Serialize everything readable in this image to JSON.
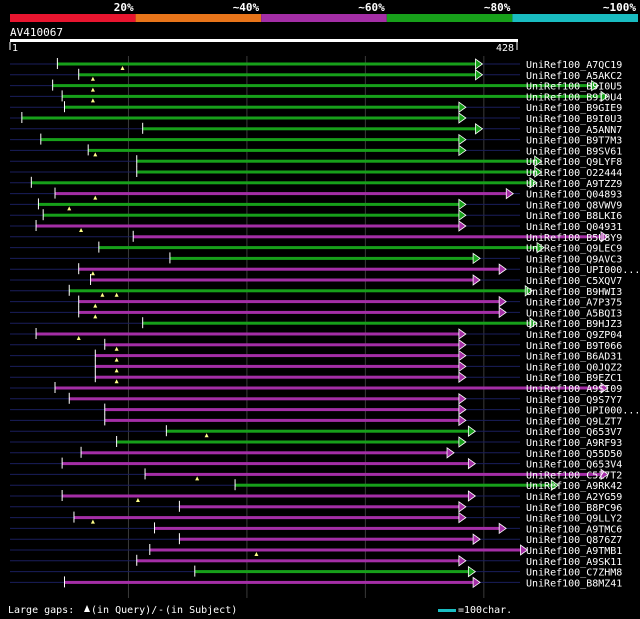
{
  "chart_data": {
    "type": "alignment-overview",
    "title": "AV410067",
    "query_length": 428,
    "axis": {
      "start_label": "1",
      "end_label": "428"
    },
    "identity_legend": [
      {
        "label": "20%",
        "color": "#e8152f"
      },
      {
        "label": "~40%",
        "color": "#e8751a"
      },
      {
        "label": "~60%",
        "color": "#a42ea6"
      },
      {
        "label": "~80%",
        "color": "#17a01a"
      },
      {
        "label": "~100%",
        "color": "#19bcc1"
      }
    ],
    "hits": [
      {
        "name": "UniRef100_A7QC19",
        "start": 40,
        "end": 398,
        "color": "#17a01a",
        "arrow": true,
        "marks": [
          95
        ],
        "extra": [
          [
            40,
            70
          ]
        ]
      },
      {
        "name": "UniRef100_A5AKC2",
        "start": 58,
        "end": 398,
        "color": "#17a01a",
        "arrow": true,
        "marks": [
          70
        ],
        "extra": [
          [
            58,
            70
          ]
        ]
      },
      {
        "name": "UniRef100_B9I0U5",
        "start": 36,
        "end": 496,
        "color": "#17a01a",
        "arrow": true,
        "marks": [
          70
        ],
        "extra": [
          [
            160,
            175
          ]
        ]
      },
      {
        "name": "UniRef100_B9I0U4",
        "start": 44,
        "end": 504,
        "color": "#17a01a",
        "arrow": true,
        "marks": [
          70
        ],
        "extra": [
          [
            165,
            180
          ]
        ]
      },
      {
        "name": "UniRef100_B9GIE9",
        "start": 46,
        "end": 384,
        "color": "#17a01a",
        "arrow": true,
        "marks": [],
        "extra": [
          [
            46,
            60
          ]
        ]
      },
      {
        "name": "UniRef100_B9I0U3",
        "start": 10,
        "end": 384,
        "color": "#17a01a",
        "arrow": true,
        "marks": [],
        "extra": []
      },
      {
        "name": "UniRef100_A5ANN7",
        "start": 112,
        "end": 398,
        "color": "#17a01a",
        "arrow": true,
        "marks": [],
        "extra": []
      },
      {
        "name": "UniRef100_B9T7M3",
        "start": 26,
        "end": 384,
        "color": "#17a01a",
        "arrow": true,
        "marks": [],
        "extra": [
          [
            26,
            56
          ]
        ]
      },
      {
        "name": "UniRef100_B9SV61",
        "start": 66,
        "end": 384,
        "color": "#17a01a",
        "arrow": true,
        "marks": [
          72
        ],
        "extra": [
          [
            66,
            76
          ]
        ]
      },
      {
        "name": "UniRef100_Q9LYF8",
        "start": 107,
        "end": 448,
        "color": "#17a01a",
        "arrow": true,
        "marks": [],
        "extra": []
      },
      {
        "name": "UniRef100_O22444",
        "start": 107,
        "end": 448,
        "color": "#17a01a",
        "arrow": true,
        "marks": [],
        "extra": []
      },
      {
        "name": "UniRef100_A9TZZ9",
        "start": 18,
        "end": 444,
        "color": "#17a01a",
        "arrow": true,
        "marks": [],
        "extra": [
          [
            100,
            150
          ]
        ]
      },
      {
        "name": "UniRef100_Q04893",
        "start": 38,
        "end": 424,
        "color": "#a42ea6",
        "arrow": true,
        "marks": [
          72
        ],
        "extra": [
          [
            38,
            52
          ]
        ]
      },
      {
        "name": "UniRef100_Q8VWV9",
        "start": 24,
        "end": 384,
        "color": "#17a01a",
        "arrow": true,
        "marks": [
          50
        ],
        "extra": [
          [
            24,
            40
          ]
        ]
      },
      {
        "name": "UniRef100_B8LKI6",
        "start": 28,
        "end": 384,
        "color": "#17a01a",
        "arrow": true,
        "marks": [],
        "extra": [
          [
            60,
            90
          ]
        ]
      },
      {
        "name": "UniRef100_Q04931",
        "start": 22,
        "end": 384,
        "color": "#a42ea6",
        "arrow": true,
        "marks": [
          60
        ],
        "extra": [
          [
            22,
            40
          ]
        ]
      },
      {
        "name": "UniRef100_B5U8Y9",
        "start": 104,
        "end": 504,
        "color": "#a42ea6",
        "arrow": true,
        "marks": [],
        "extra": [
          [
            200,
            215
          ]
        ]
      },
      {
        "name": "UniRef100_Q9LEC9",
        "start": 75,
        "end": 450,
        "color": "#17a01a",
        "arrow": true,
        "marks": [],
        "extra": [
          [
            180,
            200
          ]
        ]
      },
      {
        "name": "UniRef100_Q9AVC3",
        "start": 135,
        "end": 396,
        "color": "#17a01a",
        "arrow": true,
        "marks": [],
        "extra": []
      },
      {
        "name": "UniRef100_UPI000...",
        "start": 58,
        "end": 418,
        "color": "#a42ea6",
        "arrow": true,
        "marks": [
          70
        ],
        "extra": [
          [
            58,
            72
          ]
        ]
      },
      {
        "name": "UniRef100_C5XQV7",
        "start": 68,
        "end": 396,
        "color": "#a42ea6",
        "arrow": true,
        "marks": [],
        "extra": []
      },
      {
        "name": "UniRef100_B9HWI3",
        "start": 50,
        "end": 440,
        "color": "#17a01a",
        "arrow": true,
        "marks": [
          78,
          90
        ],
        "extra": [
          [
            50,
            70
          ],
          [
            170,
            180
          ]
        ]
      },
      {
        "name": "UniRef100_A7P375",
        "start": 58,
        "end": 418,
        "color": "#a42ea6",
        "arrow": true,
        "marks": [
          72
        ],
        "extra": [
          [
            90,
            110
          ]
        ]
      },
      {
        "name": "UniRef100_A5BQI3",
        "start": 58,
        "end": 418,
        "color": "#a42ea6",
        "arrow": true,
        "marks": [
          72
        ],
        "extra": [
          [
            90,
            110
          ]
        ]
      },
      {
        "name": "UniRef100_B9HJZ3",
        "start": 112,
        "end": 444,
        "color": "#17a01a",
        "arrow": true,
        "marks": [],
        "extra": [
          [
            210,
            225
          ]
        ]
      },
      {
        "name": "UniRef100_Q9ZP04",
        "start": 22,
        "end": 384,
        "color": "#a42ea6",
        "arrow": true,
        "marks": [
          58
        ],
        "extra": [
          [
            22,
            40
          ]
        ]
      },
      {
        "name": "UniRef100_B9T066",
        "start": 80,
        "end": 384,
        "color": "#a42ea6",
        "arrow": true,
        "marks": [
          90
        ],
        "extra": [
          [
            80,
            115
          ]
        ]
      },
      {
        "name": "UniRef100_B6AD31",
        "start": 72,
        "end": 384,
        "color": "#a42ea6",
        "arrow": true,
        "marks": [
          90
        ],
        "extra": []
      },
      {
        "name": "UniRef100_Q0JQZ2",
        "start": 72,
        "end": 384,
        "color": "#a42ea6",
        "arrow": true,
        "marks": [
          90
        ],
        "extra": []
      },
      {
        "name": "UniRef100_B9EZC1",
        "start": 72,
        "end": 384,
        "color": "#a42ea6",
        "arrow": true,
        "marks": [
          90
        ],
        "extra": []
      },
      {
        "name": "UniRef100_A9SI09",
        "start": 38,
        "end": 504,
        "color": "#a42ea6",
        "arrow": true,
        "marks": [],
        "extra": [
          [
            160,
            175
          ]
        ]
      },
      {
        "name": "UniRef100_Q9S7Y7",
        "start": 50,
        "end": 384,
        "color": "#a42ea6",
        "arrow": true,
        "marks": [],
        "extra": [
          [
            50,
            90
          ]
        ]
      },
      {
        "name": "UniRef100_UPI000...",
        "start": 80,
        "end": 384,
        "color": "#a42ea6",
        "arrow": true,
        "marks": [],
        "extra": []
      },
      {
        "name": "UniRef100_Q9LZT7",
        "start": 80,
        "end": 384,
        "color": "#a42ea6",
        "arrow": true,
        "marks": [],
        "extra": []
      },
      {
        "name": "UniRef100_Q653V7",
        "start": 132,
        "end": 392,
        "color": "#17a01a",
        "arrow": true,
        "marks": [
          166
        ],
        "extra": [
          [
            132,
            150
          ]
        ]
      },
      {
        "name": "UniRef100_A9RF93",
        "start": 90,
        "end": 384,
        "color": "#17a01a",
        "arrow": true,
        "marks": [],
        "extra": []
      },
      {
        "name": "UniRef100_Q55D50",
        "start": 60,
        "end": 374,
        "color": "#a42ea6",
        "arrow": true,
        "marks": [],
        "extra": [
          [
            60,
            120
          ]
        ]
      },
      {
        "name": "UniRef100_Q653V4",
        "start": 44,
        "end": 392,
        "color": "#a42ea6",
        "arrow": true,
        "marks": [],
        "extra": [
          [
            44,
            65
          ]
        ]
      },
      {
        "name": "UniRef100_C5Z7T2",
        "start": 114,
        "end": 504,
        "color": "#a42ea6",
        "arrow": true,
        "marks": [
          158
        ],
        "extra": []
      },
      {
        "name": "UniRef100_A9RK42",
        "start": 190,
        "end": 462,
        "color": "#17a01a",
        "arrow": true,
        "marks": [],
        "extra": [
          [
            270,
            290
          ]
        ]
      },
      {
        "name": "UniRef100_A2YG59",
        "start": 44,
        "end": 392,
        "color": "#a42ea6",
        "arrow": true,
        "marks": [
          108
        ],
        "extra": [
          [
            44,
            60
          ]
        ]
      },
      {
        "name": "UniRef100_B8PC96",
        "start": 143,
        "end": 384,
        "color": "#a42ea6",
        "arrow": true,
        "marks": [],
        "extra": [
          [
            160,
            175
          ]
        ]
      },
      {
        "name": "UniRef100_Q9LLY2",
        "start": 54,
        "end": 384,
        "color": "#a42ea6",
        "arrow": true,
        "marks": [
          70
        ],
        "extra": [
          [
            54,
            90
          ]
        ]
      },
      {
        "name": "UniRef100_A9TMC6",
        "start": 122,
        "end": 418,
        "color": "#a42ea6",
        "arrow": true,
        "marks": [],
        "extra": []
      },
      {
        "name": "UniRef100_Q876Z7",
        "start": 143,
        "end": 396,
        "color": "#a42ea6",
        "arrow": true,
        "marks": [],
        "extra": [
          [
            143,
            160
          ]
        ]
      },
      {
        "name": "UniRef100_A9TMB1",
        "start": 118,
        "end": 436,
        "color": "#a42ea6",
        "arrow": true,
        "marks": [
          208
        ],
        "extra": []
      },
      {
        "name": "UniRef100_A9SK11",
        "start": 107,
        "end": 384,
        "color": "#a42ea6",
        "arrow": true,
        "marks": [],
        "extra": [
          [
            107,
            120
          ]
        ]
      },
      {
        "name": "UniRef100_C7ZHM8",
        "start": 156,
        "end": 392,
        "color": "#17a01a",
        "arrow": true,
        "marks": [],
        "extra": []
      },
      {
        "name": "UniRef100_B8MZ41",
        "start": 46,
        "end": 396,
        "color": "#a42ea6",
        "arrow": true,
        "marks": [],
        "extra": [
          [
            46,
            60
          ]
        ]
      }
    ]
  },
  "footer": {
    "gaps_label": "Large gaps:",
    "query_text": "(in Query)/",
    "dash": "-",
    "subject_text": "(in Subject)",
    "scale_label": "=100char."
  },
  "colors": {
    "background": "#000000",
    "axis": "#ffffff",
    "grid": "#3a3a3a",
    "row_line": "#1a1e5c",
    "mark": "#ffff88"
  }
}
